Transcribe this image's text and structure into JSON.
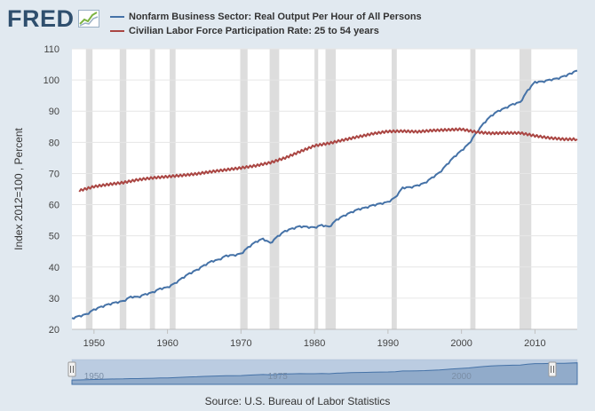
{
  "logo": {
    "text": "FRED"
  },
  "legend": {
    "items": [
      {
        "label": "Nonfarm Business Sector: Real Output Per Hour of All Persons",
        "color": "#4572a7"
      },
      {
        "label": "Civilian Labor Force Participation Rate: 25 to 54 years",
        "color": "#aa4643"
      }
    ]
  },
  "source": "Source: U.S. Bureau of Labor Statistics",
  "colors": {
    "background": "#e1e9f0",
    "plot_bg": "#ffffff",
    "recession": "#dddddd",
    "navigator": "#a8bfd9"
  },
  "chart_data": {
    "type": "line",
    "title": "",
    "xlabel": "",
    "ylabel": "Index 2012=100 , Percent",
    "xlim": [
      1947,
      2015.75
    ],
    "ylim": [
      20,
      110
    ],
    "x_ticks": [
      1950,
      1960,
      1970,
      1980,
      1990,
      2000,
      2010
    ],
    "y_ticks": [
      20,
      30,
      40,
      50,
      60,
      70,
      80,
      90,
      100,
      110
    ],
    "recessions": [
      [
        1948.9,
        1949.8
      ],
      [
        1953.5,
        1954.4
      ],
      [
        1957.6,
        1958.3
      ],
      [
        1960.3,
        1961.1
      ],
      [
        1969.9,
        1970.9
      ],
      [
        1973.9,
        1975.2
      ],
      [
        1980.0,
        1980.5
      ],
      [
        1981.5,
        1982.9
      ],
      [
        1990.5,
        1991.2
      ],
      [
        2001.2,
        2001.9
      ],
      [
        2007.9,
        2009.5
      ]
    ],
    "series": [
      {
        "name": "Nonfarm Business Sector: Real Output Per Hour of All Persons",
        "color": "#4572a7",
        "x": [
          1947,
          1948,
          1949,
          1950,
          1951,
          1952,
          1953,
          1954,
          1955,
          1956,
          1957,
          1958,
          1959,
          1960,
          1961,
          1962,
          1963,
          1964,
          1965,
          1966,
          1967,
          1968,
          1969,
          1970,
          1971,
          1972,
          1973,
          1974,
          1975,
          1976,
          1977,
          1978,
          1979,
          1980,
          1981,
          1982,
          1983,
          1984,
          1985,
          1986,
          1987,
          1988,
          1989,
          1990,
          1991,
          1992,
          1993,
          1994,
          1995,
          1996,
          1997,
          1998,
          1999,
          2000,
          2001,
          2002,
          2003,
          2004,
          2005,
          2006,
          2007,
          2008,
          2009,
          2010,
          2011,
          2012,
          2013,
          2014,
          2015.75
        ],
        "values": [
          23.5,
          24.2,
          24.8,
          26.3,
          27.2,
          28.0,
          28.6,
          29.0,
          30.4,
          30.3,
          31.2,
          31.8,
          33.0,
          33.4,
          34.7,
          36.4,
          37.9,
          39.0,
          40.5,
          41.8,
          42.3,
          43.6,
          43.7,
          44.2,
          46.3,
          48.0,
          49.0,
          47.6,
          49.8,
          51.5,
          52.3,
          53.0,
          52.8,
          52.6,
          53.4,
          52.8,
          55.1,
          56.4,
          57.5,
          58.5,
          59.0,
          59.8,
          60.3,
          60.8,
          62.3,
          65.4,
          65.5,
          66.1,
          66.9,
          68.6,
          70.2,
          72.8,
          75.3,
          77.3,
          79.5,
          82.9,
          86.0,
          88.4,
          90.0,
          91.0,
          92.2,
          92.8,
          96.6,
          99.3,
          99.4,
          100.0,
          100.4,
          101.2,
          103.0
        ]
      },
      {
        "name": "Civilian Labor Force Participation Rate: 25 to 54 years",
        "color": "#aa4643",
        "x": [
          1948,
          1950,
          1952,
          1954,
          1956,
          1958,
          1960,
          1962,
          1964,
          1966,
          1968,
          1970,
          1972,
          1974,
          1976,
          1978,
          1980,
          1982,
          1984,
          1986,
          1988,
          1990,
          1992,
          1994,
          1996,
          1998,
          2000,
          2002,
          2004,
          2006,
          2008,
          2010,
          2012,
          2014,
          2015.75
        ],
        "values": [
          64.5,
          65.8,
          66.5,
          67.1,
          68.0,
          68.6,
          69.0,
          69.4,
          69.9,
          70.6,
          71.2,
          71.8,
          72.5,
          73.5,
          75.0,
          77.0,
          78.9,
          79.7,
          80.8,
          81.8,
          82.8,
          83.5,
          83.6,
          83.4,
          83.8,
          84.0,
          84.2,
          83.3,
          82.9,
          83.0,
          83.0,
          82.1,
          81.4,
          81.0,
          81.0
        ]
      }
    ],
    "navigator": {
      "x_labels": [
        "1950",
        "1975",
        "2000"
      ]
    }
  }
}
